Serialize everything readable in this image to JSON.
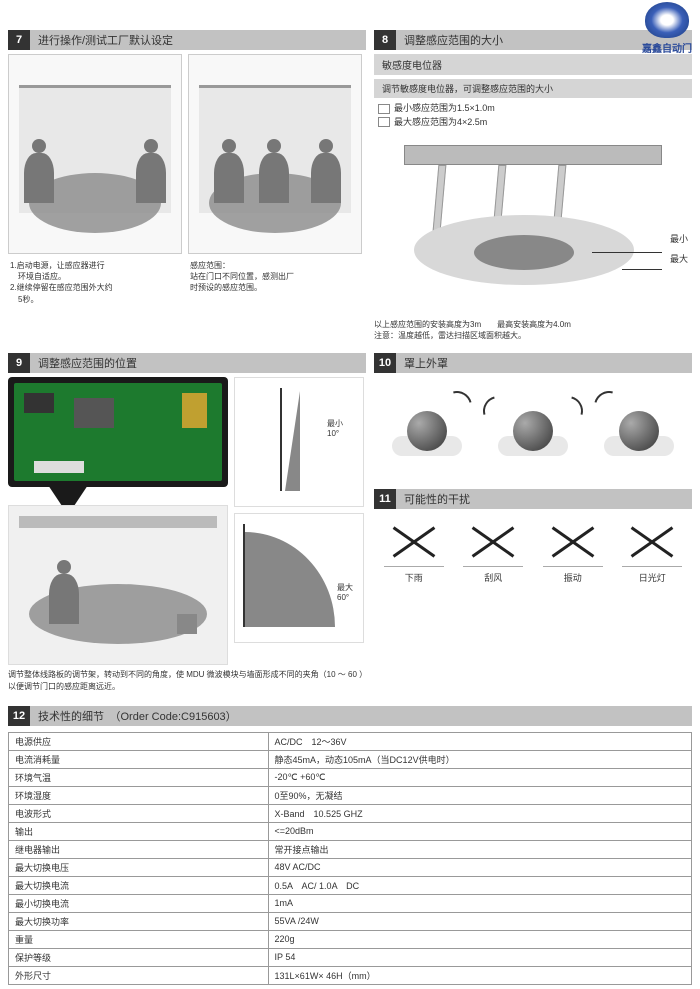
{
  "logo": {
    "brand": "嘉鑫自动门"
  },
  "s7": {
    "num": "7",
    "title": "进行操作/测试工厂默认设定",
    "cap1a": "1.启动电源，让感应器进行",
    "cap1b": "　环境自适应。",
    "cap1c": "2.继续停留在感应范围外大约",
    "cap1d": "　5秒。",
    "cap2a": "感应范围：",
    "cap2b": "站在门口不同位置，感测出厂",
    "cap2c": "时预设的感应范围。"
  },
  "s8": {
    "num": "8",
    "title": "调整感应范围的大小",
    "sub1": "敏感度电位器",
    "sub2": "调节敏感度电位器，可调整感应范围的大小",
    "bullet1": "最小感应范围为1.5×1.0m",
    "bullet2": "最大感应范围为4×2.5m",
    "label_min": "最小",
    "label_max": "最大",
    "note1": "以上感应范围的安装高度为3m　　最高安装高度为4.0m",
    "note2": "注意：温度越低，雷达扫描区域面积越大。"
  },
  "s9": {
    "num": "9",
    "title": "调整感应范围的位置",
    "angle1": "10°",
    "angle1_label": "最小",
    "angle2": "60°",
    "angle2_label": "最大",
    "caption": "调节整体线路板的调节架，转动到不同的角度，使 MDU 微波模块与墙面形成不同的夹角（10 ～ 60 ）以便调节门口的感应距离远近。"
  },
  "s10": {
    "num": "10",
    "title": "罩上外罩"
  },
  "s11": {
    "num": "11",
    "title": "可能性的干扰",
    "items": [
      "下雨",
      "刮风",
      "振动",
      "日光灯"
    ]
  },
  "s12": {
    "num": "12",
    "title": "技术性的细节　（Order Code:C915603）",
    "rows": [
      [
        "电源供应",
        "AC/DC　12～36V"
      ],
      [
        "电流消耗量",
        "静态45mA，动态105mA（当DC12V供电时）"
      ],
      [
        "环境气温",
        "-20℃ +60℃"
      ],
      [
        "环境湿度",
        "0至90%，无凝结"
      ],
      [
        "电波形式",
        "X-Band　10.525 GHZ"
      ],
      [
        "输出",
        "<=20dBm"
      ],
      [
        "继电器输出",
        "常开接点输出"
      ],
      [
        "最大切换电压",
        "48V AC/DC"
      ],
      [
        "最大切换电流",
        "0.5A　AC/ 1.0A　DC"
      ],
      [
        "最小切换电流",
        "1mA"
      ],
      [
        "最大切换功率",
        "55VA /24W"
      ],
      [
        "重量",
        "220g"
      ],
      [
        "保护等级",
        "IP 54"
      ],
      [
        "外形尺寸",
        "131L×61W× 46H（mm）"
      ]
    ]
  }
}
